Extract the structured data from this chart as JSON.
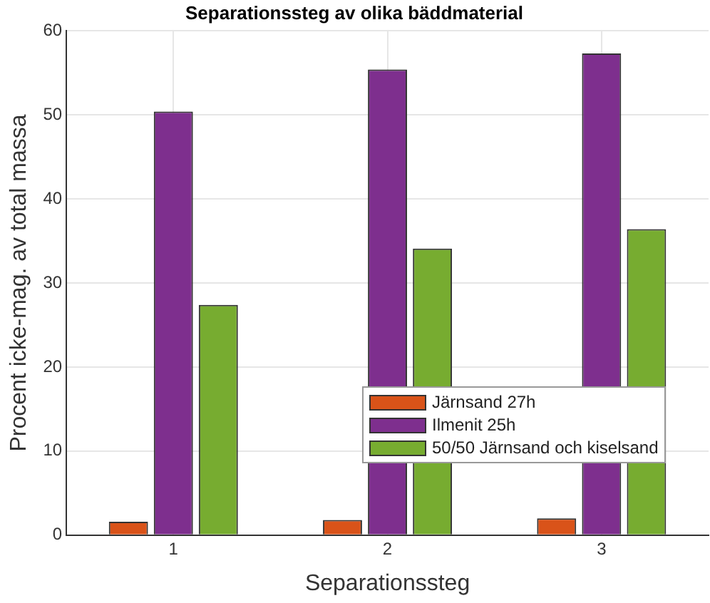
{
  "chart_data": {
    "type": "bar",
    "title": "Separationssteg av olika bäddmaterial",
    "xlabel": "Separationssteg",
    "ylabel": "Procent icke-mag. av total massa",
    "categories": [
      "1",
      "2",
      "3"
    ],
    "series": [
      {
        "name": "Järnsand 27h",
        "color": "#d95319",
        "values": [
          1.6,
          1.8,
          2.0
        ]
      },
      {
        "name": "Ilmenit 25h",
        "color": "#7e2f8e",
        "values": [
          50.4,
          55.4,
          57.3
        ]
      },
      {
        "name": "50/50 Järnsand och kiselsand",
        "color": "#77ac30",
        "values": [
          27.4,
          34.1,
          36.4
        ]
      }
    ],
    "ylim": [
      0,
      60
    ],
    "yticks": [
      0,
      10,
      20,
      30,
      40,
      50,
      60
    ],
    "grid": true,
    "legend": "bottom right"
  }
}
